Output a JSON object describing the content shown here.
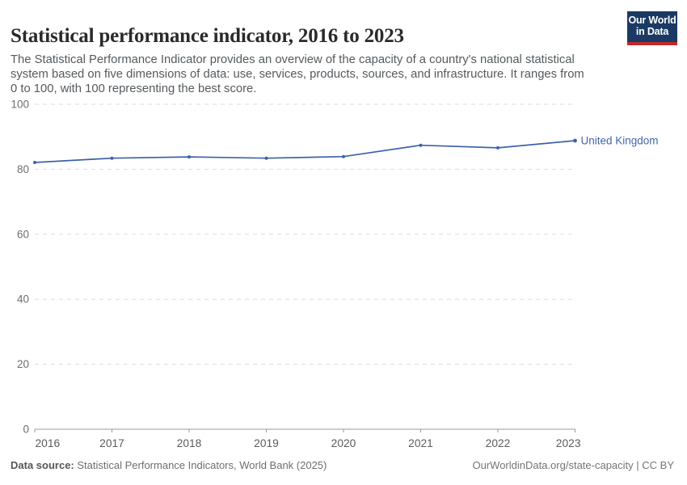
{
  "header": {
    "title": "Statistical performance indicator, 2016 to 2023",
    "subtitle": "The Statistical Performance Indicator provides an overview of the capacity of a country's national statistical system based on five dimensions of data: use, services, products, sources, and infrastructure. It ranges from 0 to 100, with 100 representing the best score."
  },
  "logo": {
    "line1": "Our World",
    "line2": "in Data",
    "bg_color": "#1b3a63",
    "accent_color": "#c0272d",
    "text_color": "#ffffff"
  },
  "chart_data": {
    "type": "line",
    "title": "Statistical performance indicator, 2016 to 2023",
    "x": [
      2016,
      2017,
      2018,
      2019,
      2020,
      2021,
      2022,
      2023
    ],
    "series": [
      {
        "name": "United Kingdom",
        "values": [
          82.1,
          83.4,
          83.8,
          83.4,
          83.9,
          87.4,
          86.6,
          88.8
        ],
        "color": "#3d63a8",
        "label_color": "#4267ab"
      }
    ],
    "xlabel": "",
    "ylabel": "",
    "ylim": [
      0,
      100
    ],
    "yticks": [
      0,
      20,
      40,
      60,
      80,
      100
    ],
    "grid": "horizontal-dashed",
    "gridline_color": "#dedede",
    "axis_color": "#9a9a9a",
    "ytick_label_color": "#6e6e6e",
    "xtick_label_color": "#5c5c5c",
    "legend_position": "end-of-line-label"
  },
  "footer": {
    "datasource_label": "Data source:",
    "datasource_value": " Statistical Performance Indicators, World Bank (2025)",
    "attribution": "OurWorldinData.org/state-capacity | CC BY"
  }
}
